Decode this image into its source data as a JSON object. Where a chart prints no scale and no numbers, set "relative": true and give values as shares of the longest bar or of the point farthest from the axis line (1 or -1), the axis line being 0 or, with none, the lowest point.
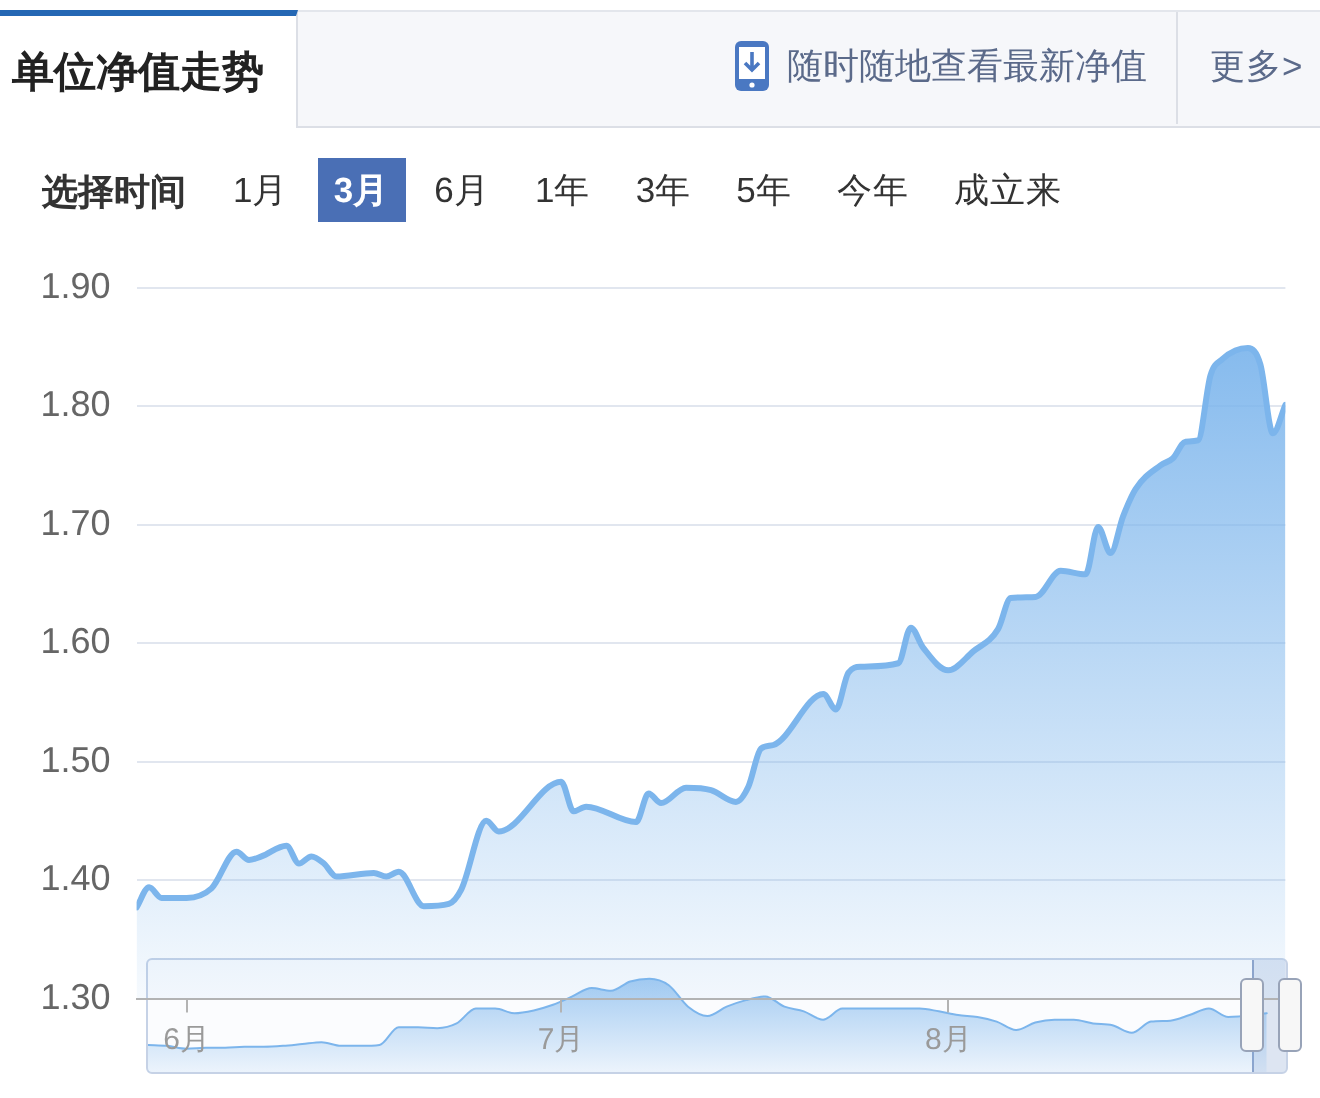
{
  "chart_data": [
    {
      "type": "area",
      "title": "单位净值走势",
      "annotations": [
        "随时随地查看最新净值",
        "更多>",
        "选择时间",
        "1月",
        "3月",
        "6月",
        "1年",
        "3年",
        "5年",
        "今年",
        "成立来"
      ],
      "x": [
        "--05-28",
        "--05-29",
        "--05-30",
        "--06-01",
        "--06-03",
        "--06-05",
        "--06-06",
        "--06-07",
        "--06-09",
        "--06-10",
        "--06-11",
        "--06-12",
        "--06-13",
        "--06-16",
        "--06-17",
        "--06-18",
        "--06-20",
        "--06-22",
        "--06-23",
        "--06-25",
        "--06-26",
        "--07-01",
        "--07-02",
        "--07-03",
        "--07-07",
        "--07-08",
        "--07-09",
        "--07-11",
        "--07-13",
        "--07-15",
        "--07-16",
        "--07-17",
        "--07-18",
        "--07-22",
        "--07-23",
        "--07-24",
        "--07-25",
        "--07-28",
        "--07-29",
        "--07-30",
        "--08-01",
        "--08-03",
        "--08-05",
        "--08-06",
        "--08-08",
        "--08-10",
        "--08-12",
        "--08-13",
        "--08-14",
        "--08-15",
        "--08-16",
        "--08-18",
        "--08-19",
        "--08-20",
        "--08-21",
        "--08-22",
        "--08-23",
        "--08-24",
        "--08-25",
        "--08-26",
        "--08-27",
        "--08-28"
      ],
      "values": [
        1.377,
        1.394,
        1.385,
        1.385,
        1.393,
        1.424,
        1.417,
        1.42,
        1.429,
        1.414,
        1.42,
        1.414,
        1.403,
        1.406,
        1.403,
        1.407,
        1.378,
        1.38,
        1.392,
        1.45,
        1.441,
        1.483,
        1.458,
        1.462,
        1.449,
        1.473,
        1.465,
        1.478,
        1.476,
        1.466,
        1.479,
        1.511,
        1.514,
        1.557,
        1.544,
        1.575,
        1.58,
        1.583,
        1.613,
        1.596,
        1.577,
        1.593,
        1.612,
        1.638,
        1.639,
        1.661,
        1.658,
        1.698,
        1.676,
        1.707,
        1.73,
        1.75,
        1.756,
        1.77,
        1.771,
        1.826,
        1.84,
        1.847,
        1.849,
        1.835,
        1.777,
        1.801
      ],
      "color": "#7cb5ec",
      "xlim": [
        "--05-28",
        "--08-28"
      ],
      "xticks": [
        {
          "value": "--06-01",
          "label": "6月"
        },
        {
          "value": "--07-01",
          "label": "7月"
        },
        {
          "value": "--08-01",
          "label": "8月"
        }
      ],
      "ylim": [
        1.3,
        1.9
      ],
      "yticks": [
        {
          "value": 1.3,
          "label": "1.30"
        },
        {
          "value": 1.4,
          "label": "1.40"
        },
        {
          "value": 1.5,
          "label": "1.50"
        },
        {
          "value": 1.6,
          "label": "1.60"
        },
        {
          "value": 1.7,
          "label": "1.70"
        },
        {
          "value": 1.8,
          "label": "1.80"
        },
        {
          "value": 1.9,
          "label": "1.90"
        }
      ],
      "grid": "y",
      "marker": "none"
    },
    {
      "type": "area",
      "relative": true,
      "categories": [
        null,
        null,
        null,
        null,
        null,
        null,
        null,
        null,
        null,
        null,
        null,
        null,
        null,
        null,
        null,
        null,
        null,
        null,
        null,
        null,
        null,
        null,
        null,
        null,
        null,
        null,
        null,
        null,
        null,
        null,
        null,
        null,
        null,
        null,
        null,
        null,
        null,
        null,
        null,
        null,
        null,
        null,
        null,
        null,
        null,
        null,
        null,
        null,
        null,
        null,
        null,
        null,
        null,
        null,
        null,
        null,
        null,
        null,
        null,
        null
      ],
      "values": [
        0.29,
        0.28,
        0.25,
        0.26,
        0.26,
        0.27,
        0.27,
        0.28,
        0.3,
        0.32,
        0.28,
        0.28,
        0.29,
        0.48,
        0.48,
        0.47,
        0.52,
        0.68,
        0.68,
        0.63,
        0.66,
        0.72,
        0.81,
        0.9,
        0.87,
        0.97,
        1,
        0.93,
        0.7,
        0.6,
        0.7,
        0.77,
        0.81,
        0.7,
        0.65,
        0.56,
        0.68,
        0.68,
        0.68,
        0.68,
        0.68,
        0.65,
        0.61,
        0.59,
        0.54,
        0.45,
        0.53,
        0.56,
        0.56,
        0.52,
        0.5,
        0.42,
        0.54,
        0.55,
        0.61,
        0.68,
        0.59,
        null,
        0.63,
        null
      ],
      "color": "#7cb5ec",
      "marker": "none"
    }
  ]
}
